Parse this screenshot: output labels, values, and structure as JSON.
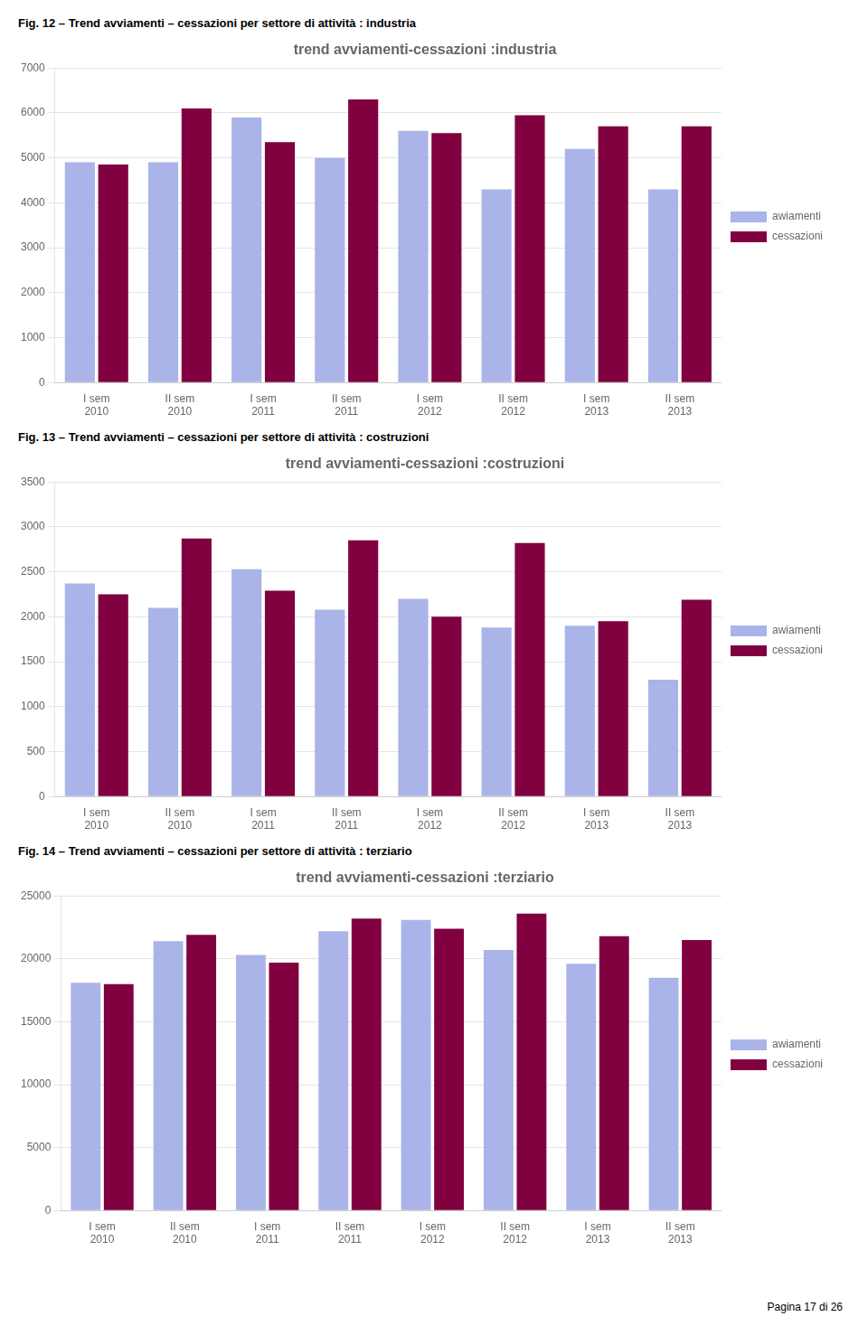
{
  "chart_data": [
    {
      "type": "bar",
      "subtitle": "Fig. 12 – Trend avviamenti – cessazioni  per settore di attività : industria",
      "title": "trend avviamenti-cessazioni :industria",
      "categories": [
        "I sem\n2010",
        "II sem\n2010",
        "I sem\n2011",
        "II sem\n2011",
        "I sem\n2012",
        "II sem\n2012",
        "I sem\n2013",
        "II sem\n2013"
      ],
      "series": [
        {
          "name": "awiamenti",
          "color": "#aab4e8",
          "values": [
            4900,
            4900,
            5900,
            5000,
            5600,
            4300,
            5200,
            4300
          ]
        },
        {
          "name": "cessazioni",
          "color": "#800040",
          "values": [
            4850,
            6100,
            5350,
            6300,
            5550,
            5950,
            5700,
            5700
          ]
        }
      ],
      "ylim": [
        0,
        7000
      ],
      "yticks": [
        0,
        1000,
        2000,
        3000,
        4000,
        5000,
        6000,
        7000
      ],
      "grid": true,
      "legend": "right"
    },
    {
      "type": "bar",
      "subtitle": "Fig. 13 – Trend avviamenti – cessazioni  per settore di attività : costruzioni",
      "title": "trend avviamenti-cessazioni :costruzioni",
      "categories": [
        "I sem\n2010",
        "II sem\n2010",
        "I sem\n2011",
        "II sem\n2011",
        "I sem\n2012",
        "II sem\n2012",
        "I sem\n2013",
        "II sem\n2013"
      ],
      "series": [
        {
          "name": "awiamenti",
          "color": "#aab4e8",
          "values": [
            2370,
            2100,
            2530,
            2080,
            2200,
            1880,
            1900,
            1300
          ]
        },
        {
          "name": "cessazioni",
          "color": "#800040",
          "values": [
            2250,
            2870,
            2290,
            2850,
            2000,
            2820,
            1950,
            2190
          ]
        }
      ],
      "ylim": [
        0,
        3500
      ],
      "yticks": [
        0,
        500,
        1000,
        1500,
        2000,
        2500,
        3000,
        3500
      ],
      "grid": true,
      "legend": "right"
    },
    {
      "type": "bar",
      "subtitle": "Fig. 14 – Trend avviamenti – cessazioni  per settore di attività : terziario",
      "title": "trend avviamenti-cessazioni :terziario",
      "categories": [
        "I sem\n2010",
        "II sem\n2010",
        "I sem\n2011",
        "II sem\n2011",
        "I sem\n2012",
        "II sem\n2012",
        "I sem\n2013",
        "II sem\n2013"
      ],
      "series": [
        {
          "name": "awiamenti",
          "color": "#aab4e8",
          "values": [
            18100,
            21400,
            20300,
            22200,
            23100,
            20700,
            19600,
            18500
          ]
        },
        {
          "name": "cessazioni",
          "color": "#800040",
          "values": [
            18000,
            21900,
            19700,
            23200,
            22400,
            23600,
            21800,
            21500
          ]
        }
      ],
      "ylim": [
        0,
        25000
      ],
      "yticks": [
        0,
        5000,
        10000,
        15000,
        20000,
        25000
      ],
      "grid": true,
      "legend": "right",
      "annotations": [
        "Pagina 17 di 26"
      ]
    }
  ]
}
